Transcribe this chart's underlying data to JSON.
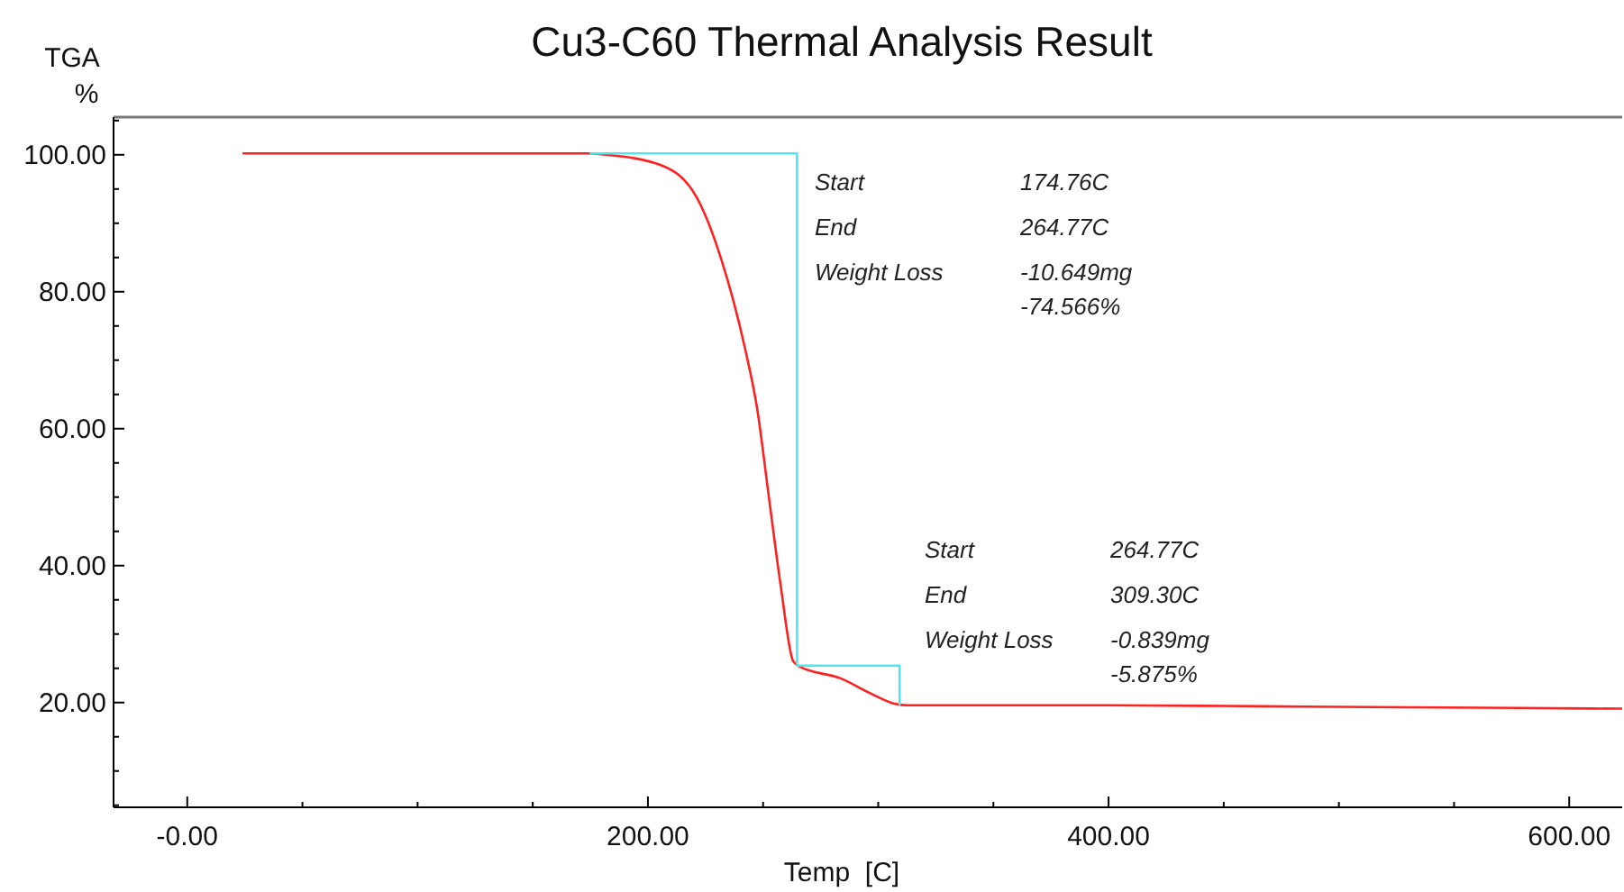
{
  "chart_data": {
    "type": "line",
    "title": "Cu3-C60 Thermal Analysis Result",
    "xlabel": "Temp  [C]",
    "ylabel": "TGA\n%",
    "xlim": [
      -32,
      623
    ],
    "ylim": [
      4.7,
      105.5
    ],
    "xticks": [
      {
        "value": 0,
        "label": "-0.00"
      },
      {
        "value": 50,
        "label": null
      },
      {
        "value": 100,
        "label": null
      },
      {
        "value": 150,
        "label": null
      },
      {
        "value": 200,
        "label": "200.00"
      },
      {
        "value": 250,
        "label": null
      },
      {
        "value": 300,
        "label": null
      },
      {
        "value": 350,
        "label": null
      },
      {
        "value": 400,
        "label": "400.00"
      },
      {
        "value": 450,
        "label": null
      },
      {
        "value": 500,
        "label": null
      },
      {
        "value": 550,
        "label": null
      },
      {
        "value": 600,
        "label": "600.00"
      }
    ],
    "yticks": [
      {
        "value": 5,
        "label": null
      },
      {
        "value": 10,
        "label": null
      },
      {
        "value": 15,
        "label": null
      },
      {
        "value": 20,
        "label": "20.00"
      },
      {
        "value": 25,
        "label": null
      },
      {
        "value": 30,
        "label": null
      },
      {
        "value": 35,
        "label": null
      },
      {
        "value": 40,
        "label": "40.00"
      },
      {
        "value": 45,
        "label": null
      },
      {
        "value": 50,
        "label": null
      },
      {
        "value": 55,
        "label": null
      },
      {
        "value": 60,
        "label": "60.00"
      },
      {
        "value": 65,
        "label": null
      },
      {
        "value": 70,
        "label": null
      },
      {
        "value": 75,
        "label": null
      },
      {
        "value": 80,
        "label": "80.00"
      },
      {
        "value": 85,
        "label": null
      },
      {
        "value": 90,
        "label": null
      },
      {
        "value": 95,
        "label": null
      },
      {
        "value": 100,
        "label": "100.00"
      },
      {
        "value": 105,
        "label": null
      }
    ],
    "grid": false,
    "marker": "none",
    "line_style": "solid",
    "series": [
      {
        "color": "#ff2020",
        "x": [
          24,
          100,
          174.76,
          182,
          205.6,
          221.3,
          231.7,
          242.1,
          247.4,
          252.6,
          257.8,
          263,
          265.6,
          283.9,
          296.9,
          307.4,
          312.6,
          350,
          400,
          450,
          485,
          530,
          580,
          623
        ],
        "values": [
          100.2,
          100.2,
          100.2,
          100,
          98.5,
          93.7,
          84.9,
          71.8,
          63,
          49.8,
          36.7,
          26.1,
          25.3,
          23.5,
          21.3,
          19.8,
          19.6,
          19.6,
          19.6,
          19.5,
          19.4,
          19.3,
          19.2,
          19.1
        ]
      },
      {
        "color": "#4de8ee",
        "x": [
          174.76,
          264.77,
          264.77,
          309.3,
          309.3
        ],
        "values": [
          100.2,
          100.2,
          25.4,
          25.4,
          19.6
        ]
      }
    ],
    "annotations": [
      "Start",
      "174.76C",
      "End",
      "264.77C",
      "Weight Loss",
      "-10.649mg",
      "-74.566%",
      "Start",
      "264.77C",
      "End",
      "309.30C",
      "Weight Loss",
      "-0.839mg",
      "-5.875%"
    ]
  }
}
